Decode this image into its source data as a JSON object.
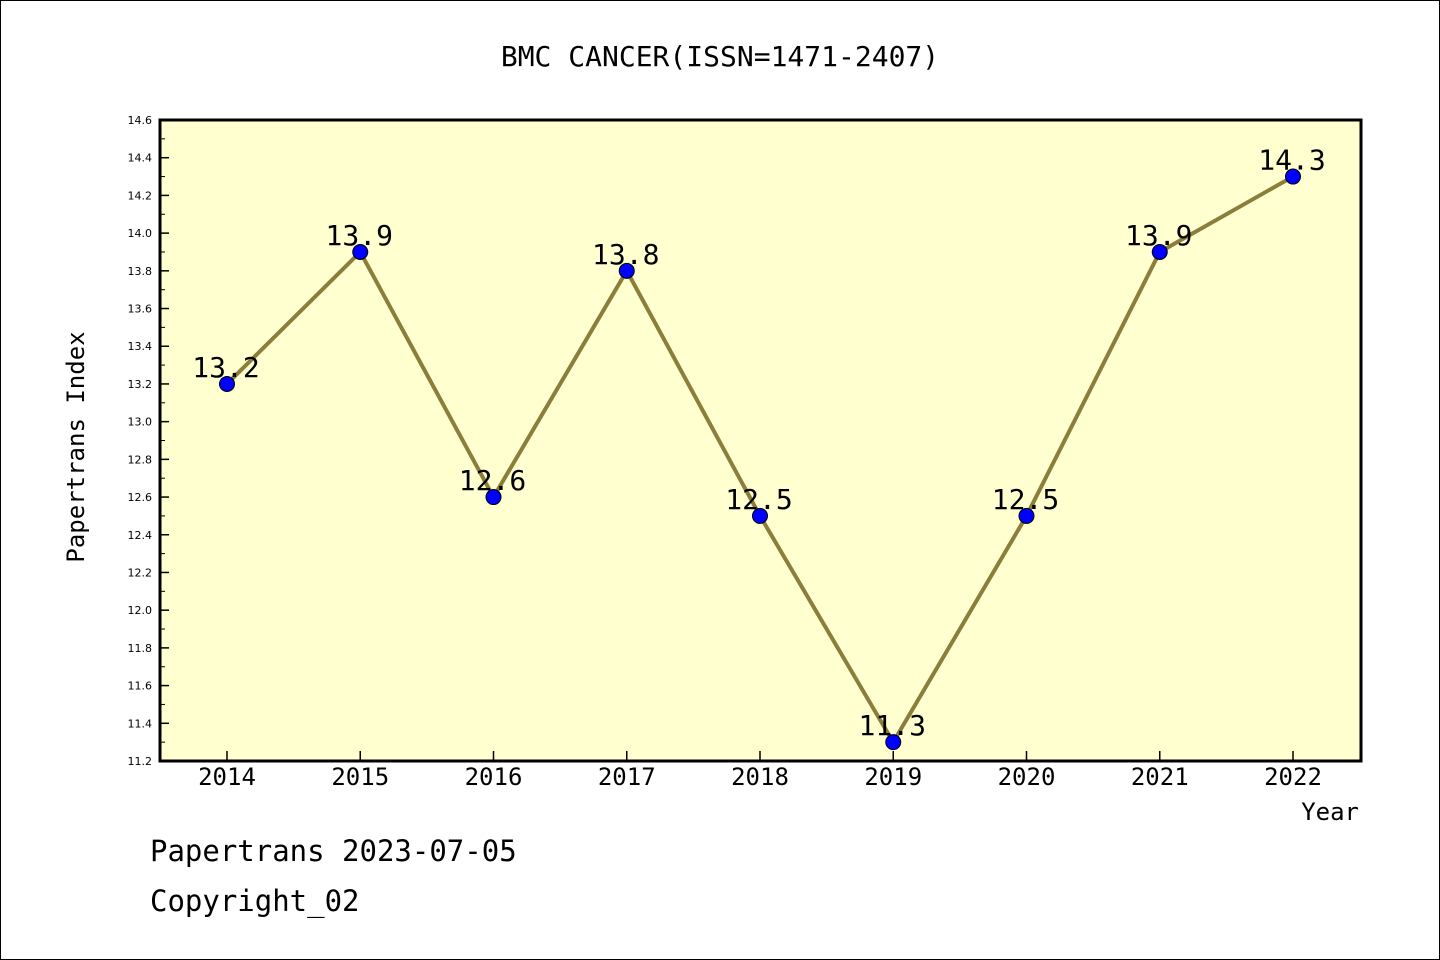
{
  "chart_data": {
    "type": "line",
    "title": "BMC CANCER(ISSN=1471-2407)",
    "xlabel": "Year",
    "ylabel": "Papertrans Index",
    "categories": [
      "2014",
      "2015",
      "2016",
      "2017",
      "2018",
      "2019",
      "2020",
      "2021",
      "2022"
    ],
    "series": [
      {
        "values": [
          13.2,
          13.9,
          12.6,
          13.8,
          12.5,
          11.3,
          12.5,
          13.9,
          14.3
        ]
      }
    ],
    "data_labels": [
      "13.2",
      "13.9",
      "12.6",
      "13.8",
      "12.5",
      "11.3",
      "12.5",
      "13.9",
      "14.3"
    ],
    "ylim": [
      11.2,
      14.6
    ],
    "yticks": [
      "11.2",
      "11.4",
      "11.6",
      "11.8",
      "12.0",
      "12.2",
      "12.4",
      "12.6",
      "12.8",
      "13.0",
      "13.2",
      "13.4",
      "13.6",
      "13.8",
      "14.0",
      "14.2",
      "14.4",
      "14.6"
    ],
    "grid": false,
    "legend": "none",
    "colors": {
      "plot_background": "#ffffd0",
      "line": "#8b7d3a",
      "marker": "#0000ff",
      "axis": "#000000"
    }
  },
  "footer": {
    "date_line": "Papertrans 2023-07-05",
    "copyright_line": "Copyright_02"
  }
}
